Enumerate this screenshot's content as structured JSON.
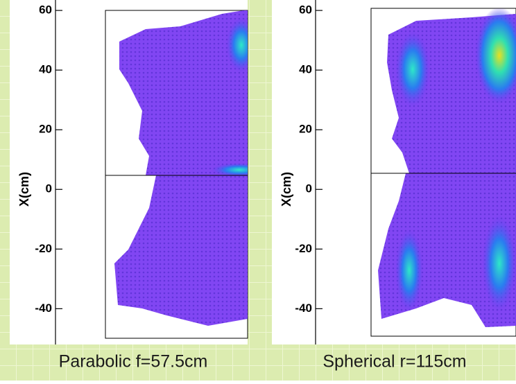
{
  "chart_data": [
    {
      "type": "heatmap",
      "ylabel": "X(cm)",
      "caption": "Parabolic f=57.5cm",
      "ylim": [
        -52,
        63.5
      ],
      "yticks": [
        60,
        40,
        20,
        0,
        -20,
        -40
      ]
    },
    {
      "type": "heatmap",
      "ylabel": "X(cm)",
      "caption": "Spherical r=115cm",
      "ylim": [
        -52,
        63.5
      ],
      "yticks": [
        60,
        40,
        20,
        0,
        -20,
        -40
      ]
    }
  ]
}
